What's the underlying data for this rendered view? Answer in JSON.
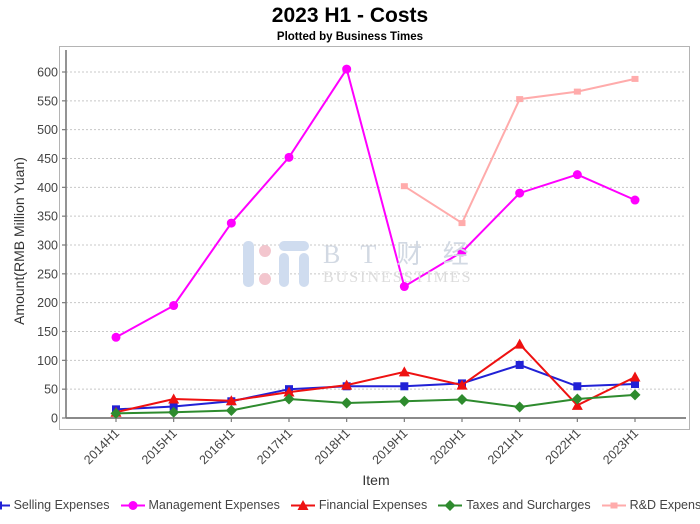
{
  "header": {
    "title": "2023 H1 - Costs",
    "subtitle": "Plotted by Business Times"
  },
  "watermark": {
    "brand": "B T 财 经",
    "brand_sub": "BUSINESSTIMES",
    "logo_blue": "#cfdcef",
    "logo_pink": "#f3c6ce"
  },
  "chart_data": {
    "type": "line",
    "title": "2023 H1 - Costs",
    "subtitle": "Plotted by Business Times",
    "xlabel": "Item",
    "ylabel": "Amount(RMB Million Yuan)",
    "ylim": [
      0,
      636
    ],
    "yticks": [
      0,
      50,
      100,
      150,
      200,
      250,
      300,
      350,
      400,
      450,
      500,
      550,
      600
    ],
    "grid": "horizontal-dashed",
    "grid_color": "#c8c8c8",
    "axis_color": "#7a7a7a",
    "tick_label_color": "#444444",
    "legend_position": "bottom",
    "categories": [
      "2014H1",
      "2015H1",
      "2016H1",
      "2017H1",
      "2018H1",
      "2019H1",
      "2020H1",
      "2021H1",
      "2022H1",
      "2023H1"
    ],
    "series": [
      {
        "name": "Selling Expenses",
        "color": "#2121d6",
        "marker": "square",
        "values": [
          15,
          20,
          29,
          50,
          55,
          55,
          60,
          92,
          55,
          59
        ]
      },
      {
        "name": "Management Expenses",
        "color": "#ff00ff",
        "marker": "circle",
        "values": [
          140,
          195,
          338,
          452,
          605,
          228,
          288,
          390,
          422,
          378
        ]
      },
      {
        "name": "Financial Expenses",
        "color": "#ee1111",
        "marker": "triangle",
        "values": [
          10,
          33,
          30,
          45,
          57,
          80,
          57,
          128,
          22,
          71
        ]
      },
      {
        "name": "Taxes and Surcharges",
        "color": "#2e8b2e",
        "marker": "diamond",
        "values": [
          8,
          10,
          13,
          33,
          26,
          29,
          32,
          19,
          33,
          40
        ]
      },
      {
        "name": "R&D Expenses",
        "color": "#ffabab",
        "marker": "square-small",
        "values": [
          null,
          null,
          null,
          null,
          null,
          402,
          338,
          553,
          566,
          588
        ]
      }
    ]
  }
}
